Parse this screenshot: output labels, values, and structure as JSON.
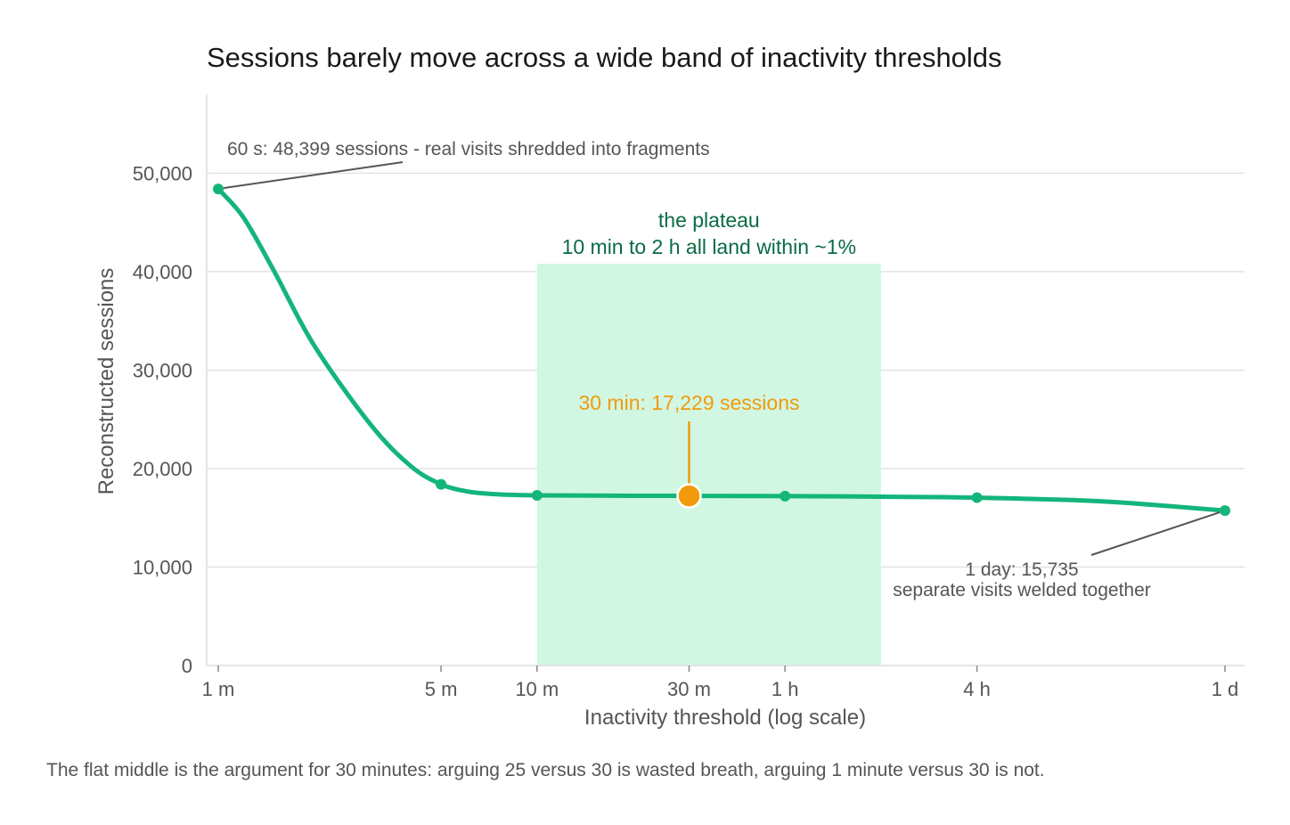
{
  "chart_data": {
    "type": "line",
    "title": "Sessions barely move across a wide band of inactivity thresholds",
    "xlabel": "Inactivity threshold (log scale)",
    "ylabel": "Reconstructed sessions",
    "x_scale": "log",
    "x_unit": "minutes",
    "xlim": [
      1,
      1440
    ],
    "ylim": [
      0,
      58000
    ],
    "grid": "horizontal",
    "x_ticks": [
      {
        "value": 1,
        "label": "1 m"
      },
      {
        "value": 5,
        "label": "5 m"
      },
      {
        "value": 10,
        "label": "10 m"
      },
      {
        "value": 30,
        "label": "30 m"
      },
      {
        "value": 60,
        "label": "1 h"
      },
      {
        "value": 240,
        "label": "4 h"
      },
      {
        "value": 1440,
        "label": "1 d"
      }
    ],
    "y_ticks": [
      {
        "value": 0,
        "label": "0"
      },
      {
        "value": 10000,
        "label": "10,000"
      },
      {
        "value": 20000,
        "label": "20,000"
      },
      {
        "value": 30000,
        "label": "30,000"
      },
      {
        "value": 40000,
        "label": "40,000"
      },
      {
        "value": 50000,
        "label": "50,000"
      }
    ],
    "series": [
      {
        "color": "#13b57b",
        "curve_x": [
          1,
          1.2,
          1.5,
          2,
          3,
          4,
          5,
          6,
          7,
          8,
          10,
          15,
          20,
          30,
          45,
          60,
          90,
          120,
          240,
          480,
          720,
          1440
        ],
        "curve_y": [
          48399,
          45500,
          40000,
          32500,
          24500,
          20300,
          18400,
          17700,
          17450,
          17350,
          17280,
          17260,
          17240,
          17229,
          17215,
          17200,
          17180,
          17150,
          17050,
          16800,
          16500,
          15735
        ],
        "marker_x": [
          1,
          5,
          10,
          30,
          60,
          240,
          1440
        ],
        "marker_y": [
          48399,
          18400,
          17280,
          17229,
          17200,
          17050,
          15735
        ]
      }
    ],
    "highlight": {
      "x": 30,
      "y": 17229,
      "color": "#f29a0b",
      "label": "30 min: 17,229 sessions"
    },
    "shaded_band": {
      "x_start": 10,
      "x_end": 120,
      "y_top": 40800,
      "color": "#d1f7e3",
      "label_line1": "the plateau",
      "label_line2": "10 min to 2 h all land within ~1%"
    },
    "annotations": [
      {
        "text": "60 s: 48,399 sessions - real visits shredded into fragments",
        "point_x": 1,
        "point_y": 48399
      },
      {
        "text_line1": "1 day: 15,735",
        "text_line2": "separate visits welded together",
        "point_x": 1440,
        "point_y": 15735
      }
    ],
    "caption": "The flat middle is the argument for 30 minutes: arguing 25 versus 30 is wasted breath, arguing 1 minute versus 30 is not."
  }
}
